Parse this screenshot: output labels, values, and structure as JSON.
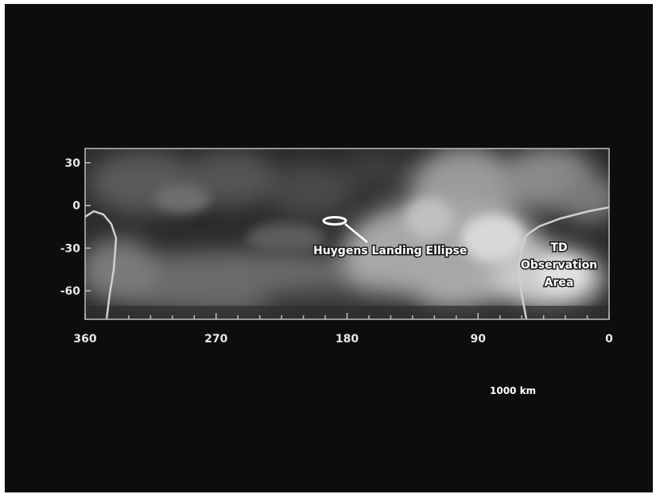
{
  "map": {
    "x_axis": {
      "labels": [
        "360",
        "270",
        "180",
        "90",
        "0"
      ],
      "values": [
        360,
        270,
        180,
        90,
        0
      ],
      "range": [
        360,
        0
      ]
    },
    "y_axis": {
      "labels": [
        "30",
        "0",
        "-30",
        "-60"
      ],
      "values": [
        30,
        0,
        -30,
        -60
      ],
      "range": [
        -80,
        40
      ]
    },
    "annotations": {
      "landing_ellipse": "Huygens Landing Ellipse",
      "observation_line1": "TD",
      "observation_line2": "Observation",
      "observation_line3": "Area"
    },
    "scale_bar": "1000 km",
    "colors": {
      "background": "#0d0d0d",
      "frame": "#bfbfbf",
      "labels": "#e6e6e6"
    }
  }
}
